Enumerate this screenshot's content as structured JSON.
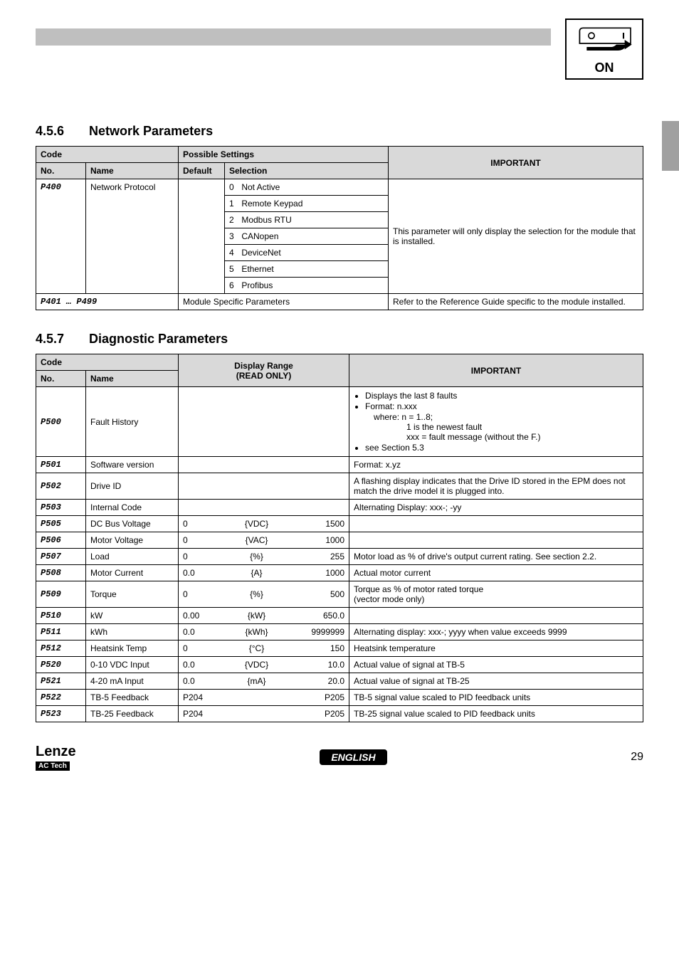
{
  "icon": {
    "on": "ON"
  },
  "sec456": {
    "num": "4.5.6",
    "title": "Network Parameters",
    "headers": {
      "code": "Code",
      "possible": "Possible Settings",
      "important": "IMPORTANT",
      "no": "No.",
      "name": "Name",
      "default": "Default",
      "selection": "Selection"
    },
    "p400": {
      "code": "P400",
      "name": "Network Protocol",
      "selections": [
        {
          "n": "0",
          "label": "Not Active"
        },
        {
          "n": "1",
          "label": "Remote Keypad"
        },
        {
          "n": "2",
          "label": "Modbus RTU"
        },
        {
          "n": "3",
          "label": "CANopen"
        },
        {
          "n": "4",
          "label": "DeviceNet"
        },
        {
          "n": "5",
          "label": "Ethernet"
        },
        {
          "n": "6",
          "label": "Profibus"
        }
      ],
      "note": "This parameter will only display the selection for the module that is installed."
    },
    "range": {
      "code": "P401 … P499",
      "sel": "Module Specific Parameters",
      "note": "Refer to the Reference Guide specific to the module installed."
    }
  },
  "sec457": {
    "num": "4.5.7",
    "title": "Diagnostic Parameters",
    "headers": {
      "code": "Code",
      "range": "Display Range",
      "readonly": "(READ ONLY)",
      "important": "IMPORTANT",
      "no": "No.",
      "name": "Name"
    },
    "rows": [
      {
        "code": "P500",
        "name": "Fault History",
        "lo": "",
        "unit": "",
        "hi": "",
        "imp_list": [
          "Displays the last 8 faults",
          "Format: n.xxx",
          "__indent:where: n = 1..8;",
          "__indent2:1 is the newest fault",
          "__indent2:xxx = fault message (without the F.)",
          "see Section 5.3"
        ]
      },
      {
        "code": "P501",
        "name": "Software version",
        "lo": "",
        "unit": "",
        "hi": "",
        "imp": "Format: x.yz"
      },
      {
        "code": "P502",
        "name": "Drive ID",
        "lo": "",
        "unit": "",
        "hi": "",
        "imp": "A flashing display indicates that the Drive ID stored in the EPM does not match the drive model it is plugged into."
      },
      {
        "code": "P503",
        "name": "Internal Code",
        "lo": "",
        "unit": "",
        "hi": "",
        "imp": "Alternating Display: xxx-; -yy"
      },
      {
        "code": "P505",
        "name": "DC Bus Voltage",
        "lo": "0",
        "unit": "{VDC}",
        "hi": "1500",
        "imp": ""
      },
      {
        "code": "P506",
        "name": "Motor Voltage",
        "lo": "0",
        "unit": "{VAC}",
        "hi": "1000",
        "imp": ""
      },
      {
        "code": "P507",
        "name": "Load",
        "lo": "0",
        "unit": "{%}",
        "hi": "255",
        "imp": "Motor load as % of drive's output current rating. See section 2.2."
      },
      {
        "code": "P508",
        "name": "Motor Current",
        "lo": "0.0",
        "unit": "{A}",
        "hi": "1000",
        "imp": "Actual motor current"
      },
      {
        "code": "P509",
        "name": "Torque",
        "lo": "0",
        "unit": "{%}",
        "hi": "500",
        "imp": "Torque as % of motor rated torque\n(vector mode only)"
      },
      {
        "code": "P510",
        "name": "kW",
        "lo": "0.00",
        "unit": "{kW}",
        "hi": "650.0",
        "imp": ""
      },
      {
        "code": "P511",
        "name": "kWh",
        "lo": "0.0",
        "unit": "{kWh}",
        "hi": "9999999",
        "imp": "Alternating display: xxx-; yyyy when value exceeds 9999"
      },
      {
        "code": "P512",
        "name": "Heatsink Temp",
        "lo": "0",
        "unit": "{°C}",
        "hi": "150",
        "imp": "Heatsink temperature"
      },
      {
        "code": "P520",
        "name": "0-10 VDC Input",
        "lo": "0.0",
        "unit": "{VDC}",
        "hi": "10.0",
        "imp": "Actual value of signal at TB-5"
      },
      {
        "code": "P521",
        "name": "4-20 mA Input",
        "lo": "0.0",
        "unit": "{mA}",
        "hi": "20.0",
        "imp": "Actual value of signal at TB-25"
      },
      {
        "code": "P522",
        "name": "TB-5 Feedback",
        "lo": "P204",
        "unit": "",
        "hi": "P205",
        "imp": "TB-5 signal value scaled to PID feedback units"
      },
      {
        "code": "P523",
        "name": "TB-25 Feedback",
        "lo": "P204",
        "unit": "",
        "hi": "P205",
        "imp": "TB-25 signal value scaled to PID feedback units"
      }
    ]
  },
  "footer": {
    "lenze": "Lenze",
    "sub": "AC Tech",
    "english": "ENGLISH",
    "page": "29"
  }
}
